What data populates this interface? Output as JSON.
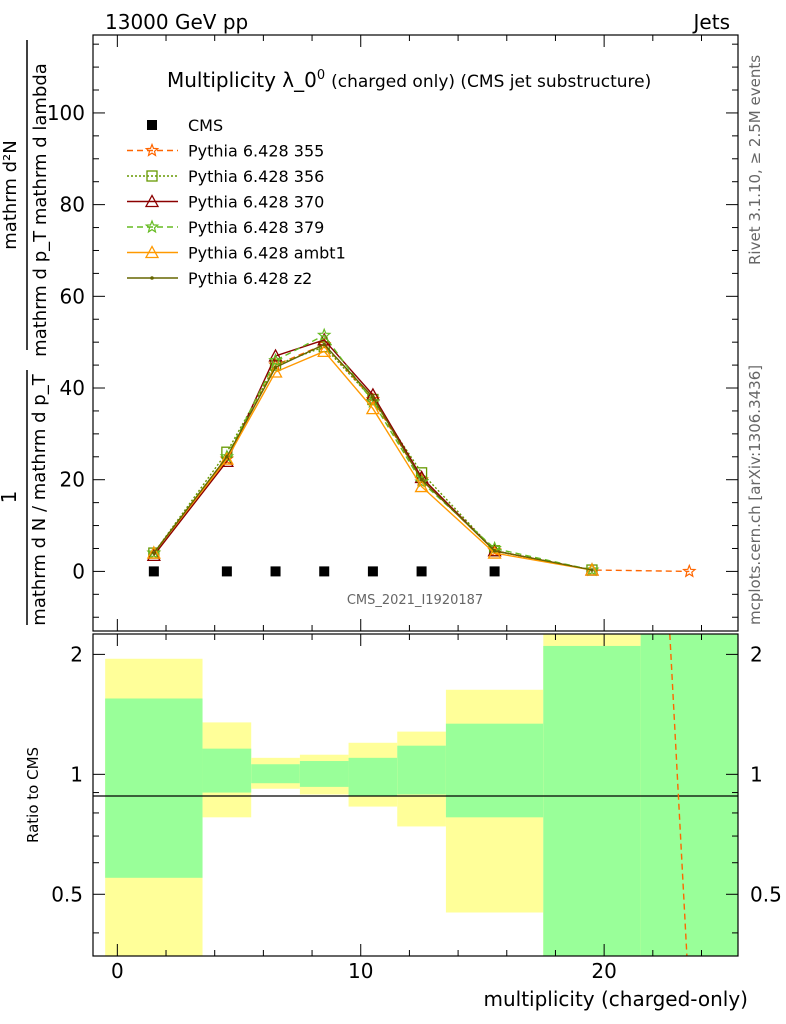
{
  "header": {
    "left": "13000 GeV pp",
    "right": "Jets"
  },
  "side_labels": {
    "rivet": "Rivet 3.1.10, ≥ 2.5M events",
    "mcplots": "mcplots.cern.ch [arXiv:1306.3436]"
  },
  "watermark": "CMS_2021_I1920187",
  "chart_data": [
    {
      "type": "line",
      "title": "Multiplicity λ_0⁰ (charged only) (CMS jet substructure)",
      "title_main": "Multiplicity λ_0",
      "title_sup": "0",
      "title_tail": "(charged only) (CMS jet substructure)",
      "ylabel_top": "mathrm d²N",
      "ylabel_mid": "mathrm d p_T mathrm d lambda",
      "ylabel_one": "1",
      "ylabel_bottom": "mathrm d N / mathrm d p_T",
      "xlim": [
        -1,
        25.5
      ],
      "ylim": [
        -13,
        117
      ],
      "yticks": [
        0,
        20,
        40,
        60,
        80,
        100
      ],
      "grid": false,
      "legend_position": "top-left",
      "series": [
        {
          "name": "CMS",
          "color": "#000000",
          "marker": "square",
          "dash": "none",
          "x": [
            1.5,
            4.5,
            6.5,
            8.5,
            10.5,
            12.5,
            15.5
          ],
          "y": [
            0,
            0,
            0,
            0,
            0,
            0,
            0
          ]
        },
        {
          "name": "Pythia 6.428 355",
          "color": "#ff6600",
          "marker": "star",
          "dash": "6,4",
          "x": [
            1.5,
            4.5,
            6.5,
            8.5,
            10.5,
            12.5,
            15.5,
            19.5,
            23.5
          ],
          "y": [
            4,
            24.5,
            45,
            49.5,
            37.5,
            20,
            4.5,
            0.3,
            0
          ]
        },
        {
          "name": "Pythia 6.428 356",
          "color": "#669900",
          "marker": "open-square",
          "dash": "2,2",
          "x": [
            1.5,
            4.5,
            6.5,
            8.5,
            10.5,
            12.5,
            15.5,
            19.5
          ],
          "y": [
            4,
            26,
            45,
            49,
            37.5,
            21.5,
            4.5,
            0.3
          ]
        },
        {
          "name": "Pythia 6.428 370",
          "color": "#8b0000",
          "marker": "triangle",
          "dash": "none",
          "x": [
            1.5,
            4.5,
            6.5,
            8.5,
            10.5,
            12.5,
            15.5,
            19.5
          ],
          "y": [
            3.5,
            24,
            47,
            50.5,
            38.5,
            20.5,
            4.5,
            0.3
          ]
        },
        {
          "name": "Pythia 6.428 379",
          "color": "#66bb22",
          "marker": "star",
          "dash": "6,4",
          "x": [
            1.5,
            4.5,
            6.5,
            8.5,
            10.5,
            12.5,
            15.5,
            19.5
          ],
          "y": [
            4,
            25,
            46,
            51.5,
            37,
            19.5,
            5,
            0.3
          ]
        },
        {
          "name": "Pythia 6.428 ambt1",
          "color": "#ff9900",
          "marker": "triangle",
          "dash": "none",
          "x": [
            1.5,
            4.5,
            6.5,
            8.5,
            10.5,
            12.5,
            15.5,
            19.5
          ],
          "y": [
            4,
            24.5,
            43.5,
            48,
            35.5,
            18.5,
            4,
            0.3
          ]
        },
        {
          "name": "Pythia 6.428 z2",
          "color": "#666600",
          "marker": "dot",
          "dash": "none",
          "x": [
            1.5,
            4.5,
            6.5,
            8.5,
            10.5,
            12.5,
            15.5,
            19.5
          ],
          "y": [
            4,
            25,
            44.5,
            49.5,
            38,
            20,
            4.5,
            0.3
          ]
        }
      ]
    },
    {
      "type": "area",
      "ylabel": "Ratio to CMS",
      "xlabel": "multiplicity (charged-only)",
      "xlim": [
        -1,
        25.5
      ],
      "ylim": [
        0.35,
        2.25
      ],
      "yticks": [
        0.5,
        1,
        2
      ],
      "xticks": [
        0,
        10,
        20
      ],
      "bins": [
        {
          "lo": -0.5,
          "hi": 3.5,
          "green": [
            0.55,
            1.55
          ],
          "yellow": [
            0.35,
            1.95
          ]
        },
        {
          "lo": 3.5,
          "hi": 5.5,
          "green": [
            0.9,
            1.16
          ],
          "yellow": [
            0.78,
            1.35
          ]
        },
        {
          "lo": 5.5,
          "hi": 7.5,
          "green": [
            0.95,
            1.06
          ],
          "yellow": [
            0.92,
            1.1
          ]
        },
        {
          "lo": 7.5,
          "hi": 9.5,
          "green": [
            0.93,
            1.08
          ],
          "yellow": [
            0.89,
            1.12
          ]
        },
        {
          "lo": 9.5,
          "hi": 11.5,
          "green": [
            0.88,
            1.1
          ],
          "yellow": [
            0.83,
            1.2
          ]
        },
        {
          "lo": 11.5,
          "hi": 13.5,
          "green": [
            0.89,
            1.18
          ],
          "yellow": [
            0.74,
            1.28
          ]
        },
        {
          "lo": 13.5,
          "hi": 17.5,
          "green": [
            0.78,
            1.34
          ],
          "yellow": [
            0.45,
            1.63
          ]
        },
        {
          "lo": 17.5,
          "hi": 21.5,
          "green": [
            0.35,
            2.1
          ],
          "yellow": [
            0.35,
            2.25
          ]
        },
        {
          "lo": 21.5,
          "hi": 25.5,
          "green": [
            0.35,
            2.25
          ],
          "yellow": [
            0.35,
            2.25
          ]
        }
      ],
      "ratio_line": {
        "name": "Pythia 6.428 355",
        "color": "#ff6600",
        "x": [
          22.7,
          23.4
        ],
        "y": [
          2.25,
          0.35
        ]
      }
    }
  ]
}
